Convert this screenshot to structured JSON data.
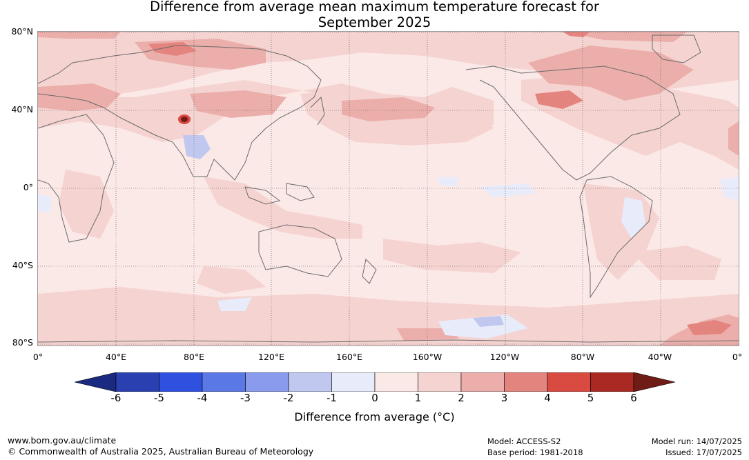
{
  "title": {
    "line1": "Difference from average mean maximum temperature forecast for",
    "line2": "September 2025"
  },
  "map": {
    "lat_labels": [
      "80°N",
      "40°N",
      "0°",
      "40°S",
      "80°S"
    ],
    "lon_labels": [
      "0°",
      "40°E",
      "80°E",
      "120°E",
      "160°E",
      "160°W",
      "120°W",
      "80°W",
      "40°W",
      "0°"
    ],
    "colors": {
      "ocean_base": "#fbe9e7",
      "band_0_1": "#fbe9e7",
      "band_1_2": "#f5d3d1",
      "band_2_3": "#ebaeaa",
      "band_3_4": "#e4847e",
      "band_4_5": "#d94a40",
      "band_5_6": "#aa2a23",
      "band_6_plus": "#701c16",
      "band_m1_0": "#e8ecfa",
      "band_m2_m1": "#c0c8f0",
      "coastline": "#6a6a6a"
    }
  },
  "colorbar": {
    "ticks": [
      "-6",
      "-5",
      "-4",
      "-3",
      "-2",
      "-1",
      "0",
      "1",
      "2",
      "3",
      "4",
      "5",
      "6"
    ],
    "colors": [
      "#1a2a80",
      "#2a40b0",
      "#3050e0",
      "#5a78e6",
      "#8a9aec",
      "#c0c8f0",
      "#e8ecfa",
      "#fbe9e7",
      "#f5d3d1",
      "#ebaeaa",
      "#e4847e",
      "#d94a40",
      "#aa2a23",
      "#701c16"
    ],
    "label": "Difference from average (°C)"
  },
  "footer": {
    "website": "www.bom.gov.au/climate",
    "copyright": "© Commonwealth of Australia 2025, Australian Bureau of Meteorology",
    "model": "Model: ACCESS-S2",
    "base_period": "Base period: 1981-2018",
    "model_run": "Model run: 14/07/2025",
    "issued": "Issued: 17/07/2025"
  }
}
